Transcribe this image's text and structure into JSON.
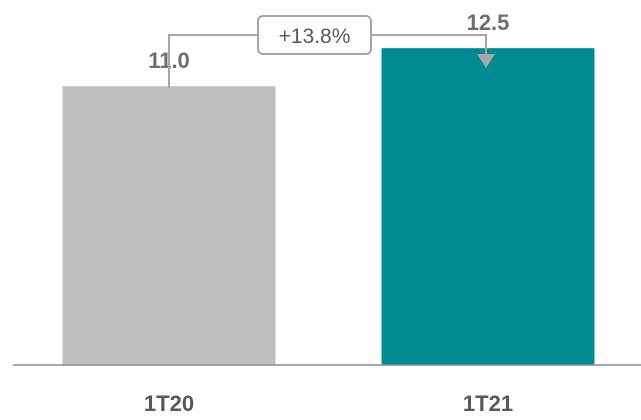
{
  "chart_data": {
    "type": "bar",
    "categories": [
      "1T20",
      "1T21"
    ],
    "values": [
      11.0,
      12.5
    ],
    "value_labels": [
      "11.0",
      "12.5"
    ],
    "colors": [
      "#bfbfbf",
      "#008b93"
    ],
    "annotation": {
      "text": "+13.8%",
      "from": "1T20",
      "to": "1T21"
    },
    "title": "",
    "xlabel": "",
    "ylabel": "",
    "ylim": [
      0,
      14.4
    ],
    "grid": false,
    "legend": "none"
  }
}
